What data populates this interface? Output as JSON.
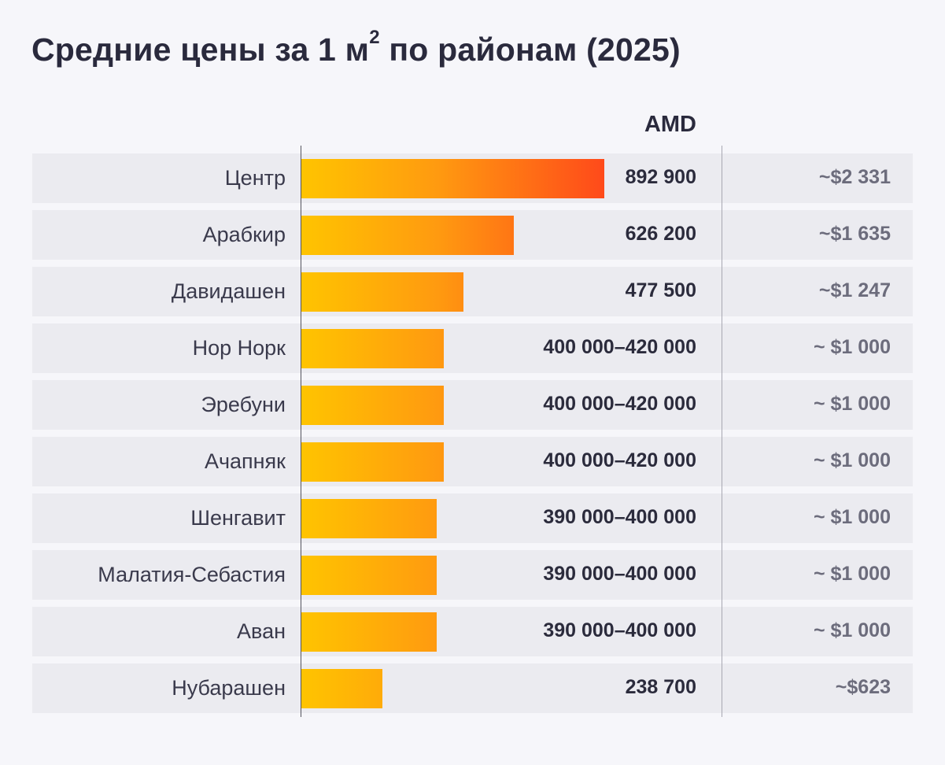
{
  "chart_data": {
    "type": "bar",
    "orientation": "horizontal",
    "title_main": "Средние цены за 1 м",
    "title_sup": "2",
    "title_rest": " по районам (2025)",
    "column_header": "AMD",
    "categories": [
      "Центр",
      "Арабкир",
      "Давидашен",
      "Нор Норк",
      "Эребуни",
      "Ачапняк",
      "Шенгавит",
      "Малатия-Себастия",
      "Аван",
      "Нубарашен"
    ],
    "values": [
      892900,
      626200,
      477500,
      420000,
      420000,
      420000,
      400000,
      400000,
      400000,
      238700
    ],
    "value_labels": [
      "892 900",
      "626 200",
      "477 500",
      "400 000–420 000",
      "400 000–420 000",
      "400 000–420 000",
      "390 000–400 000",
      "390 000–400 000",
      "390 000–400 000",
      "238 700"
    ],
    "usd_labels": [
      "~$2 331",
      "~$1 635",
      "~$1 247",
      "~ $1 000",
      "~ $1 000",
      "~ $1 000",
      "~ $1 000",
      "~ $1 000",
      "~ $1 000",
      "~$623"
    ],
    "xlim": [
      0,
      892900
    ],
    "grid": false,
    "colors": {
      "bar_start": "#ffc400",
      "bar_end": "#ff4a1a",
      "row_bg": "#ebebf0",
      "background": "#f6f6fa"
    }
  }
}
